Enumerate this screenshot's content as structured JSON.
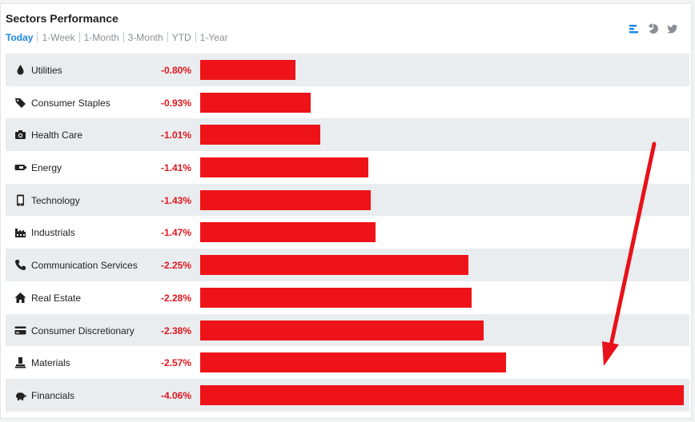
{
  "title": "Sectors Performance",
  "tabs": [
    {
      "label": "Today",
      "active": true
    },
    {
      "label": "1-Week",
      "active": false
    },
    {
      "label": "1-Month",
      "active": false
    },
    {
      "label": "3-Month",
      "active": false
    },
    {
      "label": "YTD",
      "active": false
    },
    {
      "label": "1-Year",
      "active": false
    }
  ],
  "toolbar_icons": [
    "bar-chart-icon",
    "pie-chart-icon",
    "twitter-icon"
  ],
  "colors": {
    "negative": "#e0161c",
    "bar": "#ee1318",
    "active_tab": "#1e88e5",
    "annotation_arrow": "#e8121a"
  },
  "chart_data": {
    "type": "bar",
    "orientation": "horizontal",
    "categories": [
      "Utilities",
      "Consumer Staples",
      "Health Care",
      "Energy",
      "Technology",
      "Industrials",
      "Communication Services",
      "Real Estate",
      "Consumer Discretionary",
      "Materials",
      "Financials"
    ],
    "values": [
      -0.8,
      -0.93,
      -1.01,
      -1.41,
      -1.43,
      -1.47,
      -2.25,
      -2.28,
      -2.38,
      -2.57,
      -4.06
    ],
    "labels": [
      "-0.80%",
      "-0.93%",
      "-1.01%",
      "-1.41%",
      "-1.43%",
      "-1.47%",
      "-2.25%",
      "-2.28%",
      "-2.38%",
      "-2.57%",
      "-4.06%"
    ],
    "icons": [
      "drop-icon",
      "tags-icon",
      "camera-icon",
      "battery-icon",
      "phone-icon",
      "factory-icon",
      "telephone-icon",
      "home-icon",
      "credit-card-icon",
      "flask-icon",
      "piggy-bank-icon"
    ],
    "title": "Sectors Performance",
    "xlabel": "",
    "ylabel": ""
  }
}
